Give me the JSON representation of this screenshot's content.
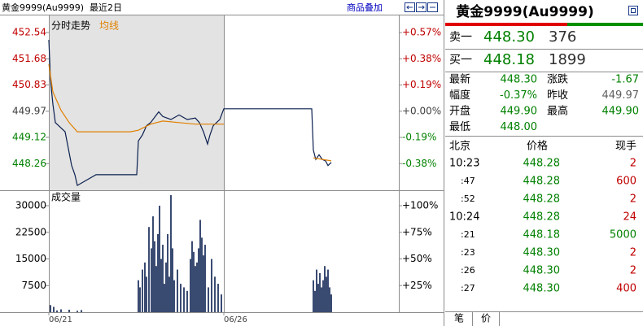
{
  "header": {
    "title": "黄金9999(Au9999)",
    "period": "最近2日",
    "overlay_button": "商品叠加"
  },
  "chart_data": [
    {
      "type": "line",
      "title": "分时走势",
      "series": [
        {
          "color": "#0a1f4f",
          "x": [
            0,
            2,
            5,
            8,
            20,
            28,
            32,
            35,
            58,
            108,
            110,
            115,
            120,
            125,
            135,
            140,
            150,
            160,
            170,
            180,
            185,
            190,
            195,
            198,
            202,
            210,
            215,
            323,
            325,
            328,
            332,
            336,
            340,
            343,
            347
          ],
          "values": [
            452.3,
            451.0,
            450.2,
            449.6,
            449.3,
            448.2,
            447.9,
            447.55,
            447.9,
            447.9,
            449.0,
            449.2,
            449.5,
            449.6,
            449.95,
            449.8,
            449.7,
            449.85,
            449.7,
            449.75,
            449.6,
            449.3,
            448.9,
            449.2,
            449.5,
            449.7,
            450.05,
            450.05,
            448.7,
            448.4,
            448.55,
            448.4,
            448.35,
            448.2,
            448.3
          ]
        },
        {
          "name": "均线",
          "color": "#e08000",
          "x": [
            0,
            5,
            15,
            25,
            35,
            100,
            110,
            125,
            140,
            160,
            180,
            215,
            270,
            325,
            347
          ],
          "values": [
            451.5,
            450.6,
            450.0,
            449.6,
            449.3,
            449.3,
            449.35,
            449.55,
            449.65,
            449.6,
            449.55,
            449.55,
            null,
            448.45,
            448.35
          ]
        }
      ],
      "xlim": [
        0,
        430
      ],
      "ylim": [
        447.42,
        452.99
      ],
      "yticks": [
        452.54,
        451.68,
        450.83,
        449.97,
        449.12,
        448.26
      ],
      "y2lim": [
        -0.567,
        0.671
      ],
      "y2ticks": [
        {
          "value": 0.57,
          "label": "+0.57%"
        },
        {
          "value": 0.38,
          "label": "+0.38%"
        },
        {
          "value": 0.19,
          "label": "+0.19%"
        },
        {
          "value": 0,
          "label": "+0.00%"
        },
        {
          "value": -0.19,
          "label": "-0.19%"
        },
        {
          "value": -0.38,
          "label": "-0.38%"
        }
      ],
      "up_color": "#c00000",
      "down_color": "#008000",
      "flat_color": "#404040",
      "shade_color": "#e3e3e3"
    },
    {
      "type": "bar",
      "title": "成交量",
      "color": "#0a1f4f",
      "x": [
        2,
        6,
        10,
        15,
        25,
        35,
        40,
        110,
        112,
        115,
        118,
        120,
        123,
        126,
        128,
        130,
        132,
        134,
        136,
        138,
        140,
        142,
        144,
        146,
        148,
        150,
        152,
        154,
        158,
        162,
        166,
        170,
        174,
        176,
        178,
        180,
        182,
        184,
        186,
        188,
        190,
        192,
        196,
        200,
        204,
        208,
        212,
        325,
        327,
        329,
        331,
        333,
        335,
        337,
        339,
        341,
        343,
        345,
        347
      ],
      "values": [
        2000,
        1500,
        500,
        800,
        700,
        400,
        600,
        9000,
        7000,
        12000,
        14000,
        10000,
        24000,
        18000,
        27000,
        20000,
        13000,
        22000,
        30000,
        15000,
        19000,
        8000,
        14000,
        22000,
        10000,
        33000,
        18000,
        9000,
        12000,
        8000,
        7000,
        6000,
        15000,
        20000,
        17000,
        13000,
        14000,
        18000,
        26000,
        21000,
        16000,
        19000,
        7000,
        15000,
        10000,
        8000,
        5000,
        9000,
        6000,
        12000,
        8000,
        11000,
        7000,
        9000,
        13000,
        10000,
        12000,
        7000,
        5000
      ],
      "xlim": [
        0,
        430
      ],
      "ylim": [
        0,
        33900
      ],
      "yticks": [
        30000,
        22500,
        15000,
        7500
      ],
      "y2lim": [
        0,
        113
      ],
      "y2ticks": [
        {
          "value": 100,
          "label": "+100%"
        },
        {
          "value": 75,
          "label": "+75%"
        },
        {
          "value": 50,
          "label": "+50%"
        },
        {
          "value": 25,
          "label": "+25%"
        }
      ],
      "xticks": [
        {
          "value": 0,
          "label": "06/21"
        },
        {
          "value": 215,
          "label": "06/26"
        }
      ]
    }
  ],
  "quote": {
    "title": "黄金9999(Au9999)",
    "book": [
      {
        "label": "卖一",
        "price": "448.30",
        "volume": "376"
      },
      {
        "label": "买一",
        "price": "448.18",
        "volume": "1899"
      }
    ],
    "stats": [
      [
        {
          "label": "最新",
          "value": "448.30",
          "color": "#008000"
        },
        {
          "label": "涨跌",
          "value": "-1.67",
          "color": "#008000"
        }
      ],
      [
        {
          "label": "幅度",
          "value": "-0.37%",
          "color": "#008000"
        },
        {
          "label": "昨收",
          "value": "449.97",
          "color": "#606060"
        }
      ],
      [
        {
          "label": "开盘",
          "value": "449.90",
          "color": "#008000"
        },
        {
          "label": "最高",
          "value": "449.90",
          "color": "#008000"
        }
      ],
      [
        {
          "label": "最低",
          "value": "448.00",
          "color": "#008000"
        }
      ]
    ],
    "trades": {
      "columns": [
        "北京",
        "价格",
        "现手"
      ],
      "rows": [
        {
          "time": "10:23",
          "price": "448.28",
          "volume": "2",
          "color": "#c00000"
        },
        {
          "time": ":47",
          "price": "448.28",
          "volume": "600",
          "color": "#c00000"
        },
        {
          "time": ":52",
          "price": "448.28",
          "volume": "2",
          "color": "#c00000"
        },
        {
          "time": "10:24",
          "price": "448.28",
          "volume": "24",
          "color": "#c00000"
        },
        {
          "time": ":21",
          "price": "448.18",
          "volume": "5000",
          "color": "#008000"
        },
        {
          "time": ":23",
          "price": "448.30",
          "volume": "2",
          "color": "#c00000"
        },
        {
          "time": ":26",
          "price": "448.30",
          "volume": "2",
          "color": "#c00000"
        },
        {
          "time": ":27",
          "price": "448.30",
          "volume": "400",
          "color": "#c00000"
        }
      ]
    },
    "tabs": [
      "笔",
      "价"
    ]
  }
}
